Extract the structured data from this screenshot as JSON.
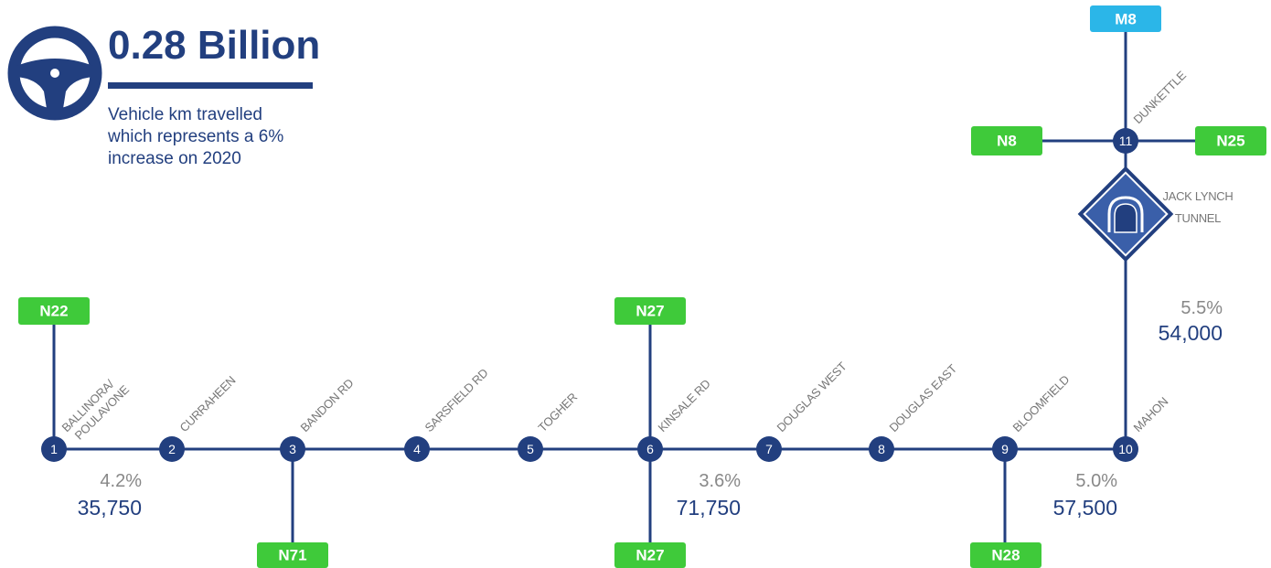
{
  "header": {
    "title": "0.28 Billion",
    "description": [
      "Vehicle km travelled",
      "which represents a 6%",
      "increase on 2020"
    ]
  },
  "nodes": [
    {
      "id": "1",
      "label": [
        "BALLINORA/",
        "POULAVONE"
      ]
    },
    {
      "id": "2",
      "label": [
        "CURRAHEEN"
      ]
    },
    {
      "id": "3",
      "label": [
        "BANDON RD"
      ]
    },
    {
      "id": "4",
      "label": [
        "SARSFIELD RD"
      ]
    },
    {
      "id": "5",
      "label": [
        "TOGHER"
      ]
    },
    {
      "id": "6",
      "label": [
        "KINSALE RD"
      ]
    },
    {
      "id": "7",
      "label": [
        "DOUGLAS WEST"
      ]
    },
    {
      "id": "8",
      "label": [
        "DOUGLAS EAST"
      ]
    },
    {
      "id": "9",
      "label": [
        "BLOOMFIELD"
      ]
    },
    {
      "id": "10",
      "label": [
        "MAHON"
      ]
    },
    {
      "id": "11",
      "label": [
        "DUNKETTLE"
      ]
    }
  ],
  "roads": [
    "N22",
    "N71",
    "N27",
    "N27",
    "N28",
    "N8",
    "M8",
    "N25"
  ],
  "tunnel": [
    "JACK LYNCH",
    "TUNNEL"
  ],
  "stats": [
    {
      "percent": "4.2%",
      "count": "35,750"
    },
    {
      "percent": "3.6%",
      "count": "71,750"
    },
    {
      "percent": "5.0%",
      "count": "57,500"
    },
    {
      "percent": "5.5%",
      "count": "54,000"
    }
  ]
}
